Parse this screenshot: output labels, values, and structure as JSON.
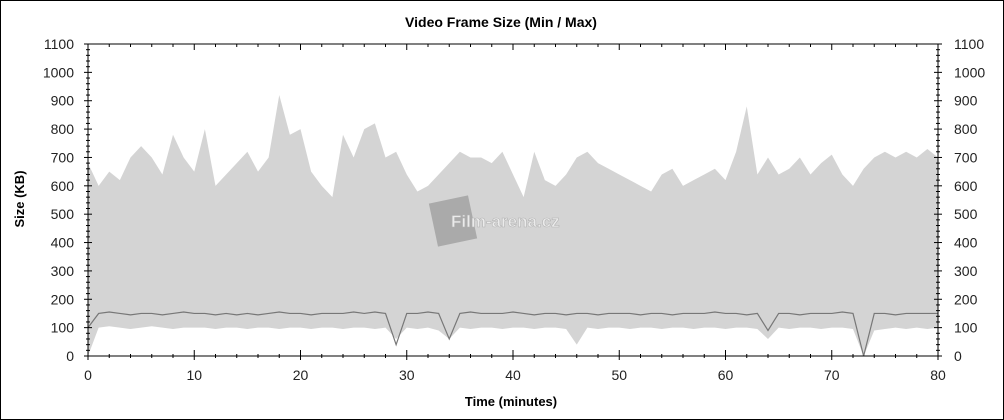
{
  "chart_data": {
    "type": "area",
    "title": "Video Frame Size (Min / Max)",
    "xlabel": "Time (minutes)",
    "ylabel": "Size (KB)",
    "xlim": [
      0,
      80
    ],
    "ylim": [
      0,
      1100
    ],
    "xticks": [
      0,
      10,
      20,
      30,
      40,
      50,
      60,
      70,
      80
    ],
    "yticks": [
      0,
      100,
      200,
      300,
      400,
      500,
      600,
      700,
      800,
      900,
      1000,
      1100
    ],
    "grid": false,
    "x": [
      0,
      1,
      2,
      3,
      4,
      5,
      6,
      7,
      8,
      9,
      10,
      11,
      12,
      13,
      14,
      15,
      16,
      17,
      18,
      19,
      20,
      21,
      22,
      23,
      24,
      25,
      26,
      27,
      28,
      29,
      30,
      31,
      32,
      33,
      34,
      35,
      36,
      37,
      38,
      39,
      40,
      41,
      42,
      43,
      44,
      45,
      46,
      47,
      48,
      49,
      50,
      51,
      52,
      53,
      54,
      55,
      56,
      57,
      58,
      59,
      60,
      61,
      62,
      63,
      64,
      65,
      66,
      67,
      68,
      69,
      70,
      71,
      72,
      73,
      74,
      75,
      76,
      77,
      78,
      79,
      80
    ],
    "series": [
      {
        "role": "max",
        "color": "#d4d4d4",
        "values": [
          680,
          600,
          650,
          620,
          700,
          740,
          700,
          640,
          780,
          700,
          650,
          800,
          600,
          640,
          680,
          720,
          650,
          700,
          920,
          780,
          800,
          650,
          600,
          560,
          780,
          700,
          800,
          820,
          700,
          720,
          640,
          580,
          600,
          640,
          680,
          720,
          700,
          700,
          680,
          720,
          640,
          560,
          720,
          620,
          600,
          640,
          700,
          720,
          680,
          660,
          640,
          620,
          600,
          580,
          640,
          660,
          600,
          620,
          640,
          660,
          620,
          720,
          880,
          640,
          700,
          640,
          660,
          700,
          640,
          680,
          710,
          640,
          600,
          660,
          700,
          720,
          700,
          720,
          700,
          730,
          700
        ]
      },
      {
        "role": "min",
        "color": "#d4d4d4",
        "values": [
          0,
          100,
          105,
          100,
          95,
          100,
          105,
          100,
          95,
          100,
          100,
          100,
          95,
          100,
          100,
          95,
          100,
          100,
          95,
          100,
          100,
          95,
          100,
          100,
          95,
          100,
          100,
          95,
          100,
          60,
          100,
          95,
          100,
          90,
          60,
          100,
          95,
          100,
          100,
          95,
          100,
          100,
          95,
          100,
          100,
          95,
          40,
          100,
          95,
          100,
          100,
          95,
          100,
          100,
          95,
          100,
          100,
          95,
          100,
          100,
          95,
          100,
          100,
          95,
          60,
          100,
          95,
          100,
          100,
          95,
          100,
          100,
          95,
          0,
          90,
          95,
          100,
          95,
          100,
          95,
          100
        ]
      },
      {
        "role": "line",
        "color": "#777777",
        "values": [
          100,
          150,
          155,
          150,
          145,
          150,
          150,
          145,
          150,
          155,
          150,
          150,
          145,
          150,
          145,
          150,
          145,
          150,
          155,
          150,
          150,
          145,
          150,
          150,
          150,
          155,
          150,
          155,
          150,
          40,
          150,
          150,
          155,
          150,
          60,
          150,
          155,
          150,
          150,
          150,
          155,
          150,
          145,
          150,
          150,
          145,
          150,
          150,
          145,
          150,
          150,
          150,
          145,
          150,
          150,
          145,
          150,
          150,
          150,
          155,
          150,
          150,
          145,
          150,
          90,
          150,
          150,
          145,
          150,
          150,
          150,
          155,
          150,
          0,
          150,
          150,
          145,
          150,
          150,
          150,
          150
        ]
      }
    ]
  },
  "watermark": {
    "text": "Film-arena.cz"
  }
}
